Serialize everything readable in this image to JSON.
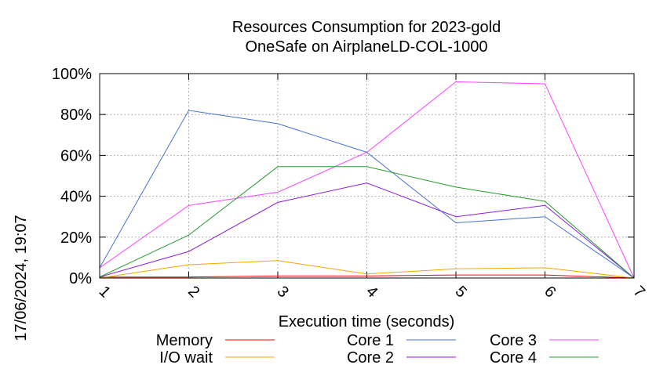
{
  "timestamp": "17/06/2024, 19:07",
  "chart_data": {
    "type": "line",
    "title": [
      "Resources Consumption for 2023-gold",
      "OneSafe on AirplaneLD-COL-1000"
    ],
    "xlabel": "Execution time (seconds)",
    "ylabel": "",
    "x": [
      1,
      2,
      3,
      4,
      5,
      6,
      7
    ],
    "xlim": [
      1,
      7
    ],
    "ylim": [
      0,
      100
    ],
    "x_ticks": [
      "1",
      "2",
      "3",
      "4",
      "5",
      "6",
      "7"
    ],
    "y_ticks": [
      {
        "value": 0,
        "label": "0%"
      },
      {
        "value": 20,
        "label": "20%"
      },
      {
        "value": 40,
        "label": "40%"
      },
      {
        "value": 60,
        "label": "60%"
      },
      {
        "value": 80,
        "label": "80%"
      },
      {
        "value": 100,
        "label": "100%"
      }
    ],
    "grid": true,
    "legend_position": "bottom",
    "series": [
      {
        "name": "Memory",
        "color": "#ff0000",
        "values": [
          0.5,
          0.5,
          1,
          1,
          1.5,
          1.5,
          0
        ]
      },
      {
        "name": "I/O wait",
        "color": "#f2a600",
        "values": [
          0,
          6.5,
          8.5,
          2,
          4.5,
          5,
          0
        ]
      },
      {
        "name": "Core 1",
        "color": "#4472d4",
        "values": [
          5,
          82,
          75.5,
          61.5,
          27,
          30,
          0
        ]
      },
      {
        "name": "Core 2",
        "color": "#8a1ae6",
        "values": [
          0.5,
          13,
          37,
          46.5,
          30,
          35.5,
          0
        ]
      },
      {
        "name": "Core 3",
        "color": "#ff40ff",
        "values": [
          5,
          35.5,
          42,
          61.5,
          96,
          95,
          0
        ]
      },
      {
        "name": "Core 4",
        "color": "#249d2c",
        "values": [
          0.5,
          21,
          54.5,
          54.5,
          44.5,
          37.5,
          0
        ]
      }
    ]
  }
}
